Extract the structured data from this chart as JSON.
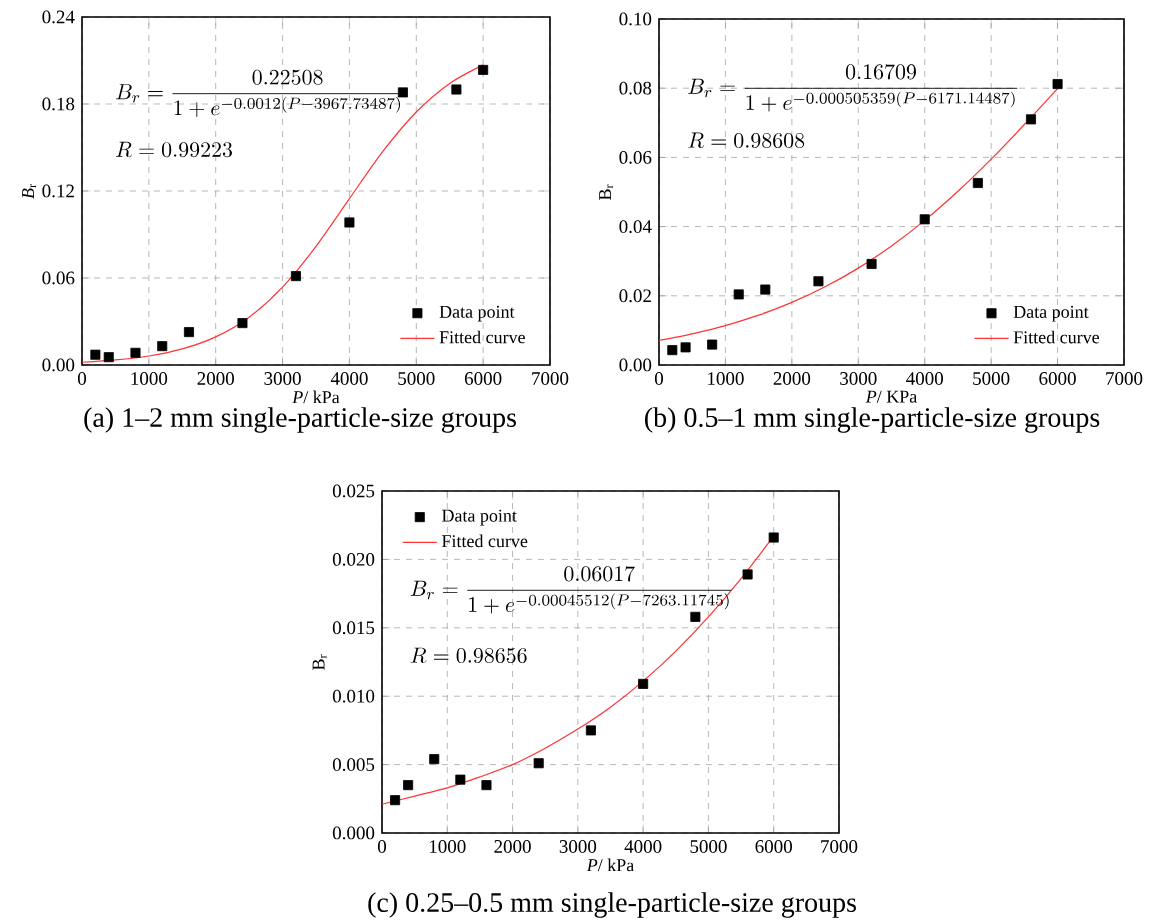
{
  "chart_data": [
    {
      "type": "scatter",
      "title": "(a) 1–2 mm single-particle-size groups",
      "xlabel": "*P*/ kPa",
      "ylabel": "*B*$_{r}$",
      "x": [
        200,
        400,
        800,
        1200,
        1600,
        2400,
        3200,
        4000,
        4800,
        5600,
        6000
      ],
      "series": [
        {
          "name": "Data point",
          "color": "#000000",
          "marker": "square",
          "values": [
            0.0071,
            0.0054,
            0.0084,
            0.013,
            0.0227,
            0.0289,
            0.0613,
            0.0983,
            0.188,
            0.19,
            0.2035
          ]
        },
        {
          "name": "Fitted curve",
          "type": "line",
          "color": "#ff3333",
          "x": [
            0,
            500,
            1000,
            1500,
            2000,
            2500,
            3000,
            3500,
            4000,
            4500,
            5000,
            5500,
            6000
          ],
          "values": [
            0.0019,
            0.0035,
            0.0062,
            0.0111,
            0.0194,
            0.033,
            0.0537,
            0.0818,
            0.1147,
            0.1473,
            0.1745,
            0.1942,
            0.207
          ]
        }
      ],
      "xlim": [
        0,
        7000
      ],
      "ylim": [
        0,
        0.24
      ],
      "xticks": [
        0,
        1000,
        2000,
        3000,
        4000,
        5000,
        6000,
        7000
      ],
      "yticks": [
        {
          "value": 0,
          "label": "0.00"
        },
        {
          "value": 0.06,
          "label": "0.06"
        },
        {
          "value": 0.12,
          "label": "0.12"
        },
        {
          "value": 0.18,
          "label": "0.18"
        },
        {
          "value": 0.24,
          "label": "0.24"
        }
      ],
      "grid": true,
      "legend": "bottom right",
      "annotations": [
        "B_r = \\frac{0.22508}{1+e^{-0.0012(P-3967.73487)}}",
        "R = 0.99223"
      ]
    },
    {
      "type": "scatter",
      "title": "(b) 0.5–1 mm single-particle-size groups",
      "xlabel": "*P*/ KPa",
      "ylabel": "B$_{r}$",
      "x": [
        200,
        400,
        800,
        1200,
        1600,
        2400,
        3200,
        4000,
        4800,
        5600,
        6000
      ],
      "series": [
        {
          "name": "Data point",
          "color": "#000000",
          "marker": "square",
          "values": [
            0.0043,
            0.0051,
            0.0059,
            0.0204,
            0.0218,
            0.0242,
            0.0292,
            0.0421,
            0.0526,
            0.071,
            0.0812
          ]
        },
        {
          "name": "Fitted curve",
          "type": "line",
          "color": "#ff3333",
          "x": [
            0,
            500,
            1000,
            1500,
            2000,
            2500,
            3000,
            3500,
            4000,
            4500,
            5000,
            5500,
            6000
          ],
          "values": [
            0.0071,
            0.009,
            0.0114,
            0.0144,
            0.0181,
            0.0226,
            0.028,
            0.0344,
            0.0418,
            0.0502,
            0.0595,
            0.0695,
            0.0799
          ]
        }
      ],
      "xlim": [
        0,
        7000
      ],
      "ylim": [
        0,
        0.1
      ],
      "xticks": [
        0,
        1000,
        2000,
        3000,
        4000,
        5000,
        6000,
        7000
      ],
      "yticks": [
        {
          "value": 0,
          "label": "0.00"
        },
        {
          "value": 0.02,
          "label": "0.02"
        },
        {
          "value": 0.04,
          "label": "0.04"
        },
        {
          "value": 0.06,
          "label": "0.06"
        },
        {
          "value": 0.08,
          "label": "0.08"
        },
        {
          "value": 0.1,
          "label": "0.10"
        }
      ],
      "grid": true,
      "legend": "bottom right",
      "annotations": [
        "B_r = \\frac{0.16709}{1+e^{-0.000505359(P-6171.14487)}}",
        "R = 0.98608"
      ]
    },
    {
      "type": "scatter",
      "title": "(c) 0.25–0.5 mm single-particle-size groups",
      "xlabel": "*P*/ kPa",
      "ylabel": "B$_{r}$",
      "x": [
        200,
        400,
        800,
        1200,
        1600,
        2400,
        3200,
        4000,
        4800,
        5600,
        6000
      ],
      "series": [
        {
          "name": "Data point",
          "color": "#000000",
          "marker": "square",
          "values": [
            0.0024,
            0.0035,
            0.0054,
            0.0039,
            0.0035,
            0.0051,
            0.0075,
            0.0109,
            0.0158,
            0.0189,
            0.0216
          ]
        },
        {
          "name": "Fitted curve",
          "type": "line",
          "color": "#ff3333",
          "x": [
            0,
            500,
            1000,
            1500,
            2000,
            2500,
            3000,
            3500,
            4000,
            4500,
            5000,
            5500,
            6000
          ],
          "values": [
            0.0021,
            0.0027,
            0.0033,
            0.0041,
            0.005,
            0.0062,
            0.0076,
            0.0092,
            0.0111,
            0.0133,
            0.0158,
            0.0186,
            0.0217
          ]
        }
      ],
      "xlim": [
        0,
        7000
      ],
      "ylim": [
        0,
        0.025
      ],
      "xticks": [
        0,
        1000,
        2000,
        3000,
        4000,
        5000,
        6000,
        7000
      ],
      "yticks": [
        {
          "value": 0,
          "label": "0.000"
        },
        {
          "value": 0.005,
          "label": "0.005"
        },
        {
          "value": 0.01,
          "label": "0.010"
        },
        {
          "value": 0.015,
          "label": "0.015"
        },
        {
          "value": 0.02,
          "label": "0.020"
        },
        {
          "value": 0.025,
          "label": "0.025"
        }
      ],
      "grid": true,
      "legend": "top left",
      "annotations": [
        "B_r = \\frac{0.06017}{1+e^{-0.00045512(P-7263.11745)}}",
        "R = 0.98656"
      ]
    }
  ]
}
